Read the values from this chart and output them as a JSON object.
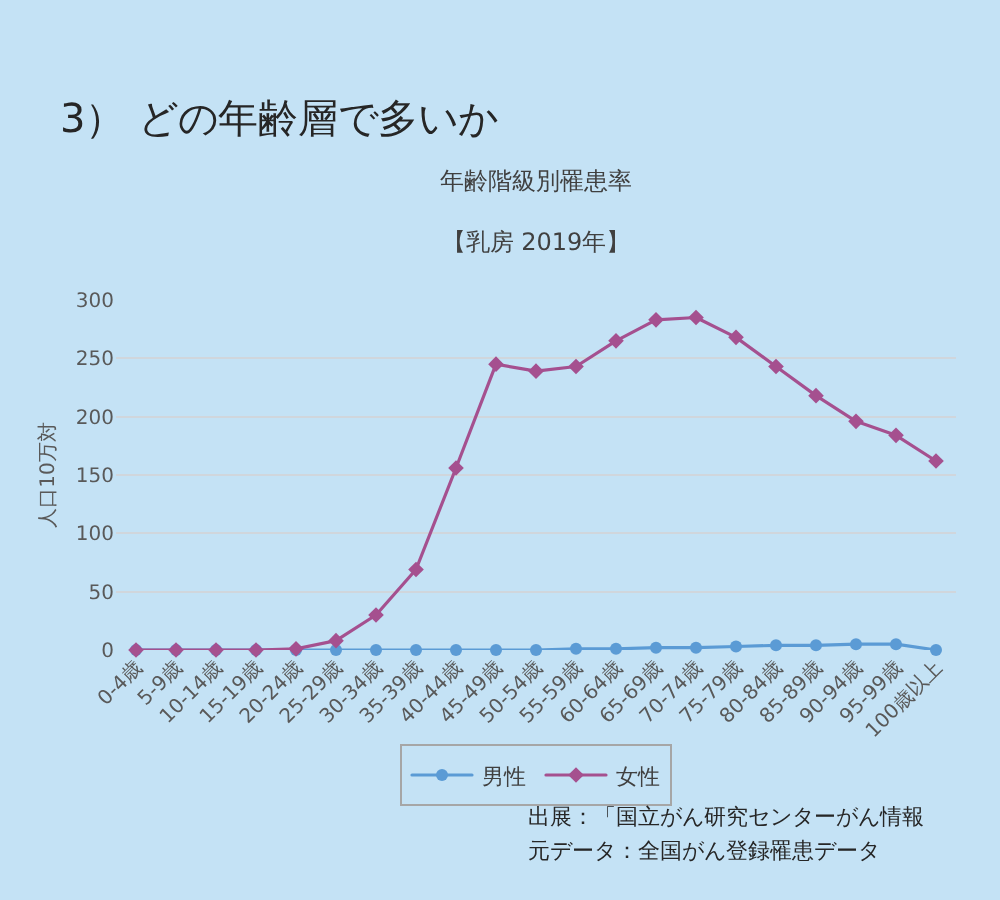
{
  "chart_data": {
    "type": "line",
    "title": "年齢階級別罹患率",
    "subtitle": "【乳房 2019年】",
    "ylabel": "人口10万対",
    "annotations": [
      "3） どの年齢層で多いか",
      "出展：「国立がん研究センターがん情報",
      "元データ：全国がん登録罹患データ"
    ],
    "categories": [
      "0-4歳",
      "5-9歳",
      "10-14歳",
      "15-19歳",
      "20-24歳",
      "25-29歳",
      "30-34歳",
      "35-39歳",
      "40-44歳",
      "45-49歳",
      "50-54歳",
      "55-59歳",
      "60-64歳",
      "65-69歳",
      "70-74歳",
      "75-79歳",
      "80-84歳",
      "85-89歳",
      "90-94歳",
      "95-99歳",
      "100歳以上"
    ],
    "series": [
      {
        "name": "男性",
        "color": "#5b9bd5",
        "values": [
          0,
          0,
          0,
          0,
          0,
          0,
          0,
          0,
          0,
          0,
          0,
          1,
          1,
          2,
          2,
          3,
          4,
          4,
          5,
          5,
          0
        ]
      },
      {
        "name": "女性",
        "color": "#a5508f",
        "marker": "diamond",
        "values": [
          0,
          0,
          0,
          0,
          1,
          8,
          30,
          69,
          156,
          245,
          239,
          243,
          265,
          283,
          285,
          268,
          243,
          218,
          196,
          184,
          162
        ]
      }
    ],
    "ylim": [
      0,
      300
    ],
    "yticks": [
      0,
      50,
      100,
      150,
      200,
      250,
      300
    ],
    "grid": "y",
    "legend": "bottom",
    "marker": "circle"
  }
}
